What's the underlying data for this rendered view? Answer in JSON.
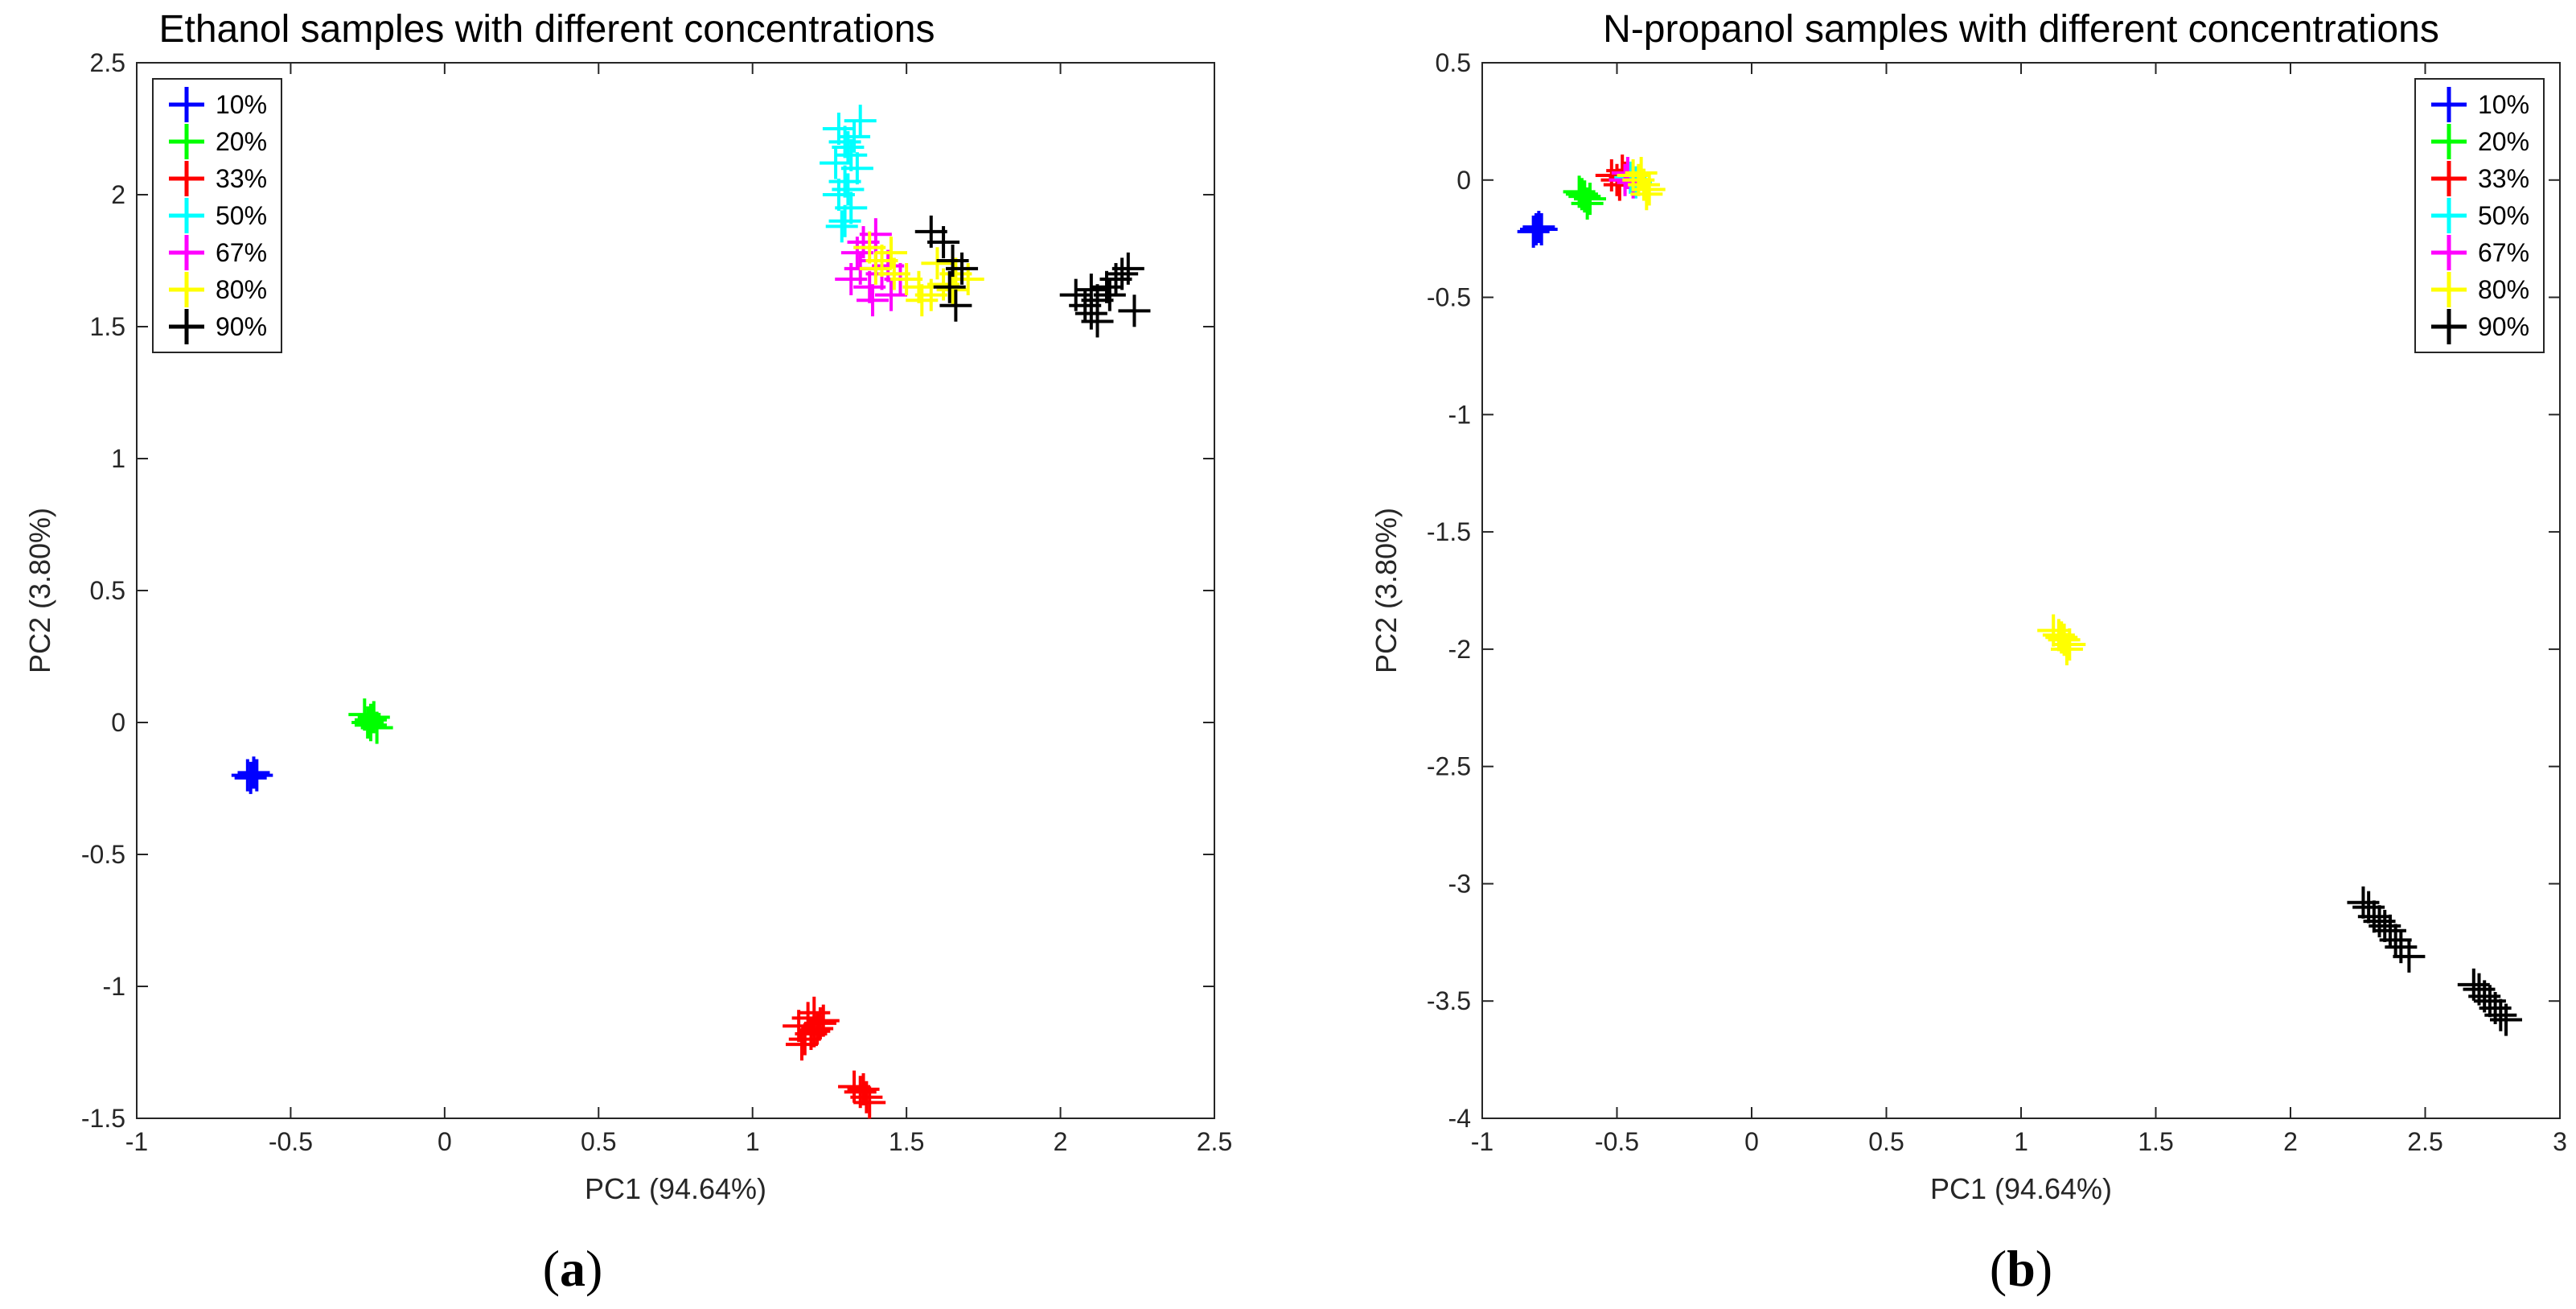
{
  "chart_data": [
    {
      "type": "scatter",
      "panel_label": "a",
      "title": "Ethanol samples with different concentrations",
      "xlabel": "PC1 (94.64%)",
      "ylabel": "PC2 (3.80%)",
      "xlim": [
        -1,
        2.5
      ],
      "ylim": [
        -1.5,
        2.5
      ],
      "xticks": [
        -1,
        -0.5,
        0,
        0.5,
        1,
        1.5,
        2,
        2.5
      ],
      "yticks": [
        -1.5,
        -1,
        -0.5,
        0,
        0.5,
        1,
        1.5,
        2,
        2.5
      ],
      "xtick_labels": [
        "-1",
        "-0.5",
        "0",
        "0.5",
        "1",
        "1.5",
        "2",
        "2.5"
      ],
      "ytick_labels": [
        "-1.5",
        "-1",
        "-0.5",
        "0",
        "0.5",
        "1",
        "1.5",
        "2",
        "2.5"
      ],
      "legend_position": "top-left",
      "marker": "+",
      "series": [
        {
          "name": "10%",
          "color": "#0000ff",
          "x": [
            -0.64,
            -0.62,
            -0.63,
            -0.61
          ],
          "y": [
            -0.2,
            -0.19,
            -0.21,
            -0.2
          ]
        },
        {
          "name": "20%",
          "color": "#00ff00",
          "x": [
            -0.26,
            -0.24,
            -0.25,
            -0.23,
            -0.22,
            -0.24
          ],
          "y": [
            0.03,
            0.01,
            0.0,
            0.02,
            -0.02,
            -0.01
          ]
        },
        {
          "name": "33%",
          "color": "#ff0000",
          "x": [
            1.15,
            1.18,
            1.2,
            1.22,
            1.17,
            1.19,
            1.21,
            1.23,
            1.16,
            1.2,
            1.33,
            1.35,
            1.37,
            1.36,
            1.38
          ],
          "y": [
            -1.15,
            -1.12,
            -1.1,
            -1.14,
            -1.2,
            -1.18,
            -1.16,
            -1.13,
            -1.22,
            -1.17,
            -1.38,
            -1.4,
            -1.42,
            -1.39,
            -1.44
          ]
        },
        {
          "name": "50%",
          "color": "#00ffff",
          "x": [
            1.28,
            1.3,
            1.32,
            1.34,
            1.3,
            1.28,
            1.32,
            1.3,
            1.27,
            1.31,
            1.33,
            1.35,
            1.29,
            1.31
          ],
          "y": [
            2.25,
            2.2,
            2.15,
            2.1,
            2.05,
            2.0,
            1.95,
            1.9,
            2.12,
            2.18,
            2.22,
            2.28,
            1.88,
            2.02
          ]
        },
        {
          "name": "67%",
          "color": "#ff00ff",
          "x": [
            1.32,
            1.35,
            1.38,
            1.4,
            1.42,
            1.45,
            1.48,
            1.36,
            1.39,
            1.44,
            1.34,
            1.4
          ],
          "y": [
            1.68,
            1.72,
            1.65,
            1.75,
            1.7,
            1.62,
            1.68,
            1.82,
            1.6,
            1.73,
            1.78,
            1.85
          ]
        },
        {
          "name": "80%",
          "color": "#ffff00",
          "x": [
            1.38,
            1.42,
            1.46,
            1.5,
            1.54,
            1.58,
            1.62,
            1.66,
            1.7,
            1.45,
            1.55,
            1.65,
            1.4,
            1.6
          ],
          "y": [
            1.8,
            1.75,
            1.7,
            1.68,
            1.65,
            1.62,
            1.66,
            1.7,
            1.68,
            1.78,
            1.6,
            1.64,
            1.72,
            1.74
          ]
        },
        {
          "name": "90%",
          "color": "#000000",
          "x": [
            1.58,
            1.62,
            1.65,
            1.68,
            1.64,
            1.66,
            2.05,
            2.08,
            2.1,
            2.12,
            2.15,
            2.18,
            2.2,
            2.22,
            2.12,
            2.16,
            2.24,
            2.1
          ],
          "y": [
            1.86,
            1.82,
            1.75,
            1.72,
            1.65,
            1.58,
            1.62,
            1.58,
            1.55,
            1.6,
            1.65,
            1.68,
            1.7,
            1.72,
            1.52,
            1.62,
            1.56,
            1.64
          ]
        }
      ]
    },
    {
      "type": "scatter",
      "panel_label": "b",
      "title": "N-propanol samples with different concentrations",
      "xlabel": "PC1 (94.64%)",
      "ylabel": "PC2 (3.80%)",
      "xlim": [
        -1,
        3
      ],
      "ylim": [
        -4,
        0.5
      ],
      "xticks": [
        -1,
        -0.5,
        0,
        0.5,
        1,
        1.5,
        2,
        2.5,
        3
      ],
      "yticks": [
        -4,
        -3.5,
        -3,
        -2.5,
        -2,
        -1.5,
        -1,
        -0.5,
        0,
        0.5
      ],
      "xtick_labels": [
        "-1",
        "-0.5",
        "0",
        "0.5",
        "1",
        "1.5",
        "2",
        "2.5",
        "3"
      ],
      "ytick_labels": [
        "-4",
        "-3.5",
        "-3",
        "-2.5",
        "-2",
        "-1.5",
        "-1",
        "-0.5",
        "0",
        "0.5"
      ],
      "legend_position": "top-right",
      "marker": "+",
      "series": [
        {
          "name": "10%",
          "color": "#0000ff",
          "x": [
            -0.8,
            -0.79,
            -0.81,
            -0.78
          ],
          "y": [
            -0.21,
            -0.2,
            -0.22,
            -0.21
          ]
        },
        {
          "name": "20%",
          "color": "#00ff00",
          "x": [
            -0.64,
            -0.62,
            -0.6,
            -0.63,
            -0.61
          ],
          "y": [
            -0.05,
            -0.07,
            -0.08,
            -0.06,
            -0.1
          ]
        },
        {
          "name": "33%",
          "color": "#ff0000",
          "x": [
            -0.52,
            -0.5,
            -0.48,
            -0.49,
            -0.47
          ],
          "y": [
            0.02,
            0.0,
            0.04,
            -0.02,
            0.01
          ]
        },
        {
          "name": "50%",
          "color": "#00ffff",
          "x": [
            -0.45,
            -0.43
          ],
          "y": [
            0.01,
            -0.01
          ]
        },
        {
          "name": "67%",
          "color": "#ff00ff",
          "x": [
            -0.46,
            -0.44,
            -0.47
          ],
          "y": [
            0.03,
            -0.01,
            0.0
          ]
        },
        {
          "name": "80%",
          "color": "#ffff00",
          "x": [
            -0.44,
            -0.42,
            -0.4,
            -0.38,
            -0.41,
            -0.39,
            1.12,
            1.14,
            1.16,
            1.18,
            1.15,
            1.17
          ],
          "y": [
            0.02,
            0.0,
            -0.02,
            -0.04,
            0.03,
            -0.06,
            -1.92,
            -1.94,
            -1.96,
            -1.98,
            -1.95,
            -2.0
          ]
        },
        {
          "name": "90%",
          "color": "#000000",
          "x": [
            2.27,
            2.29,
            2.31,
            2.33,
            2.35,
            2.37,
            2.39,
            2.41,
            2.44,
            2.68,
            2.7,
            2.72,
            2.74,
            2.76,
            2.78,
            2.8
          ],
          "y": [
            -3.08,
            -3.1,
            -3.14,
            -3.16,
            -3.18,
            -3.2,
            -3.24,
            -3.27,
            -3.31,
            -3.43,
            -3.45,
            -3.48,
            -3.5,
            -3.53,
            -3.56,
            -3.58
          ]
        }
      ]
    }
  ]
}
